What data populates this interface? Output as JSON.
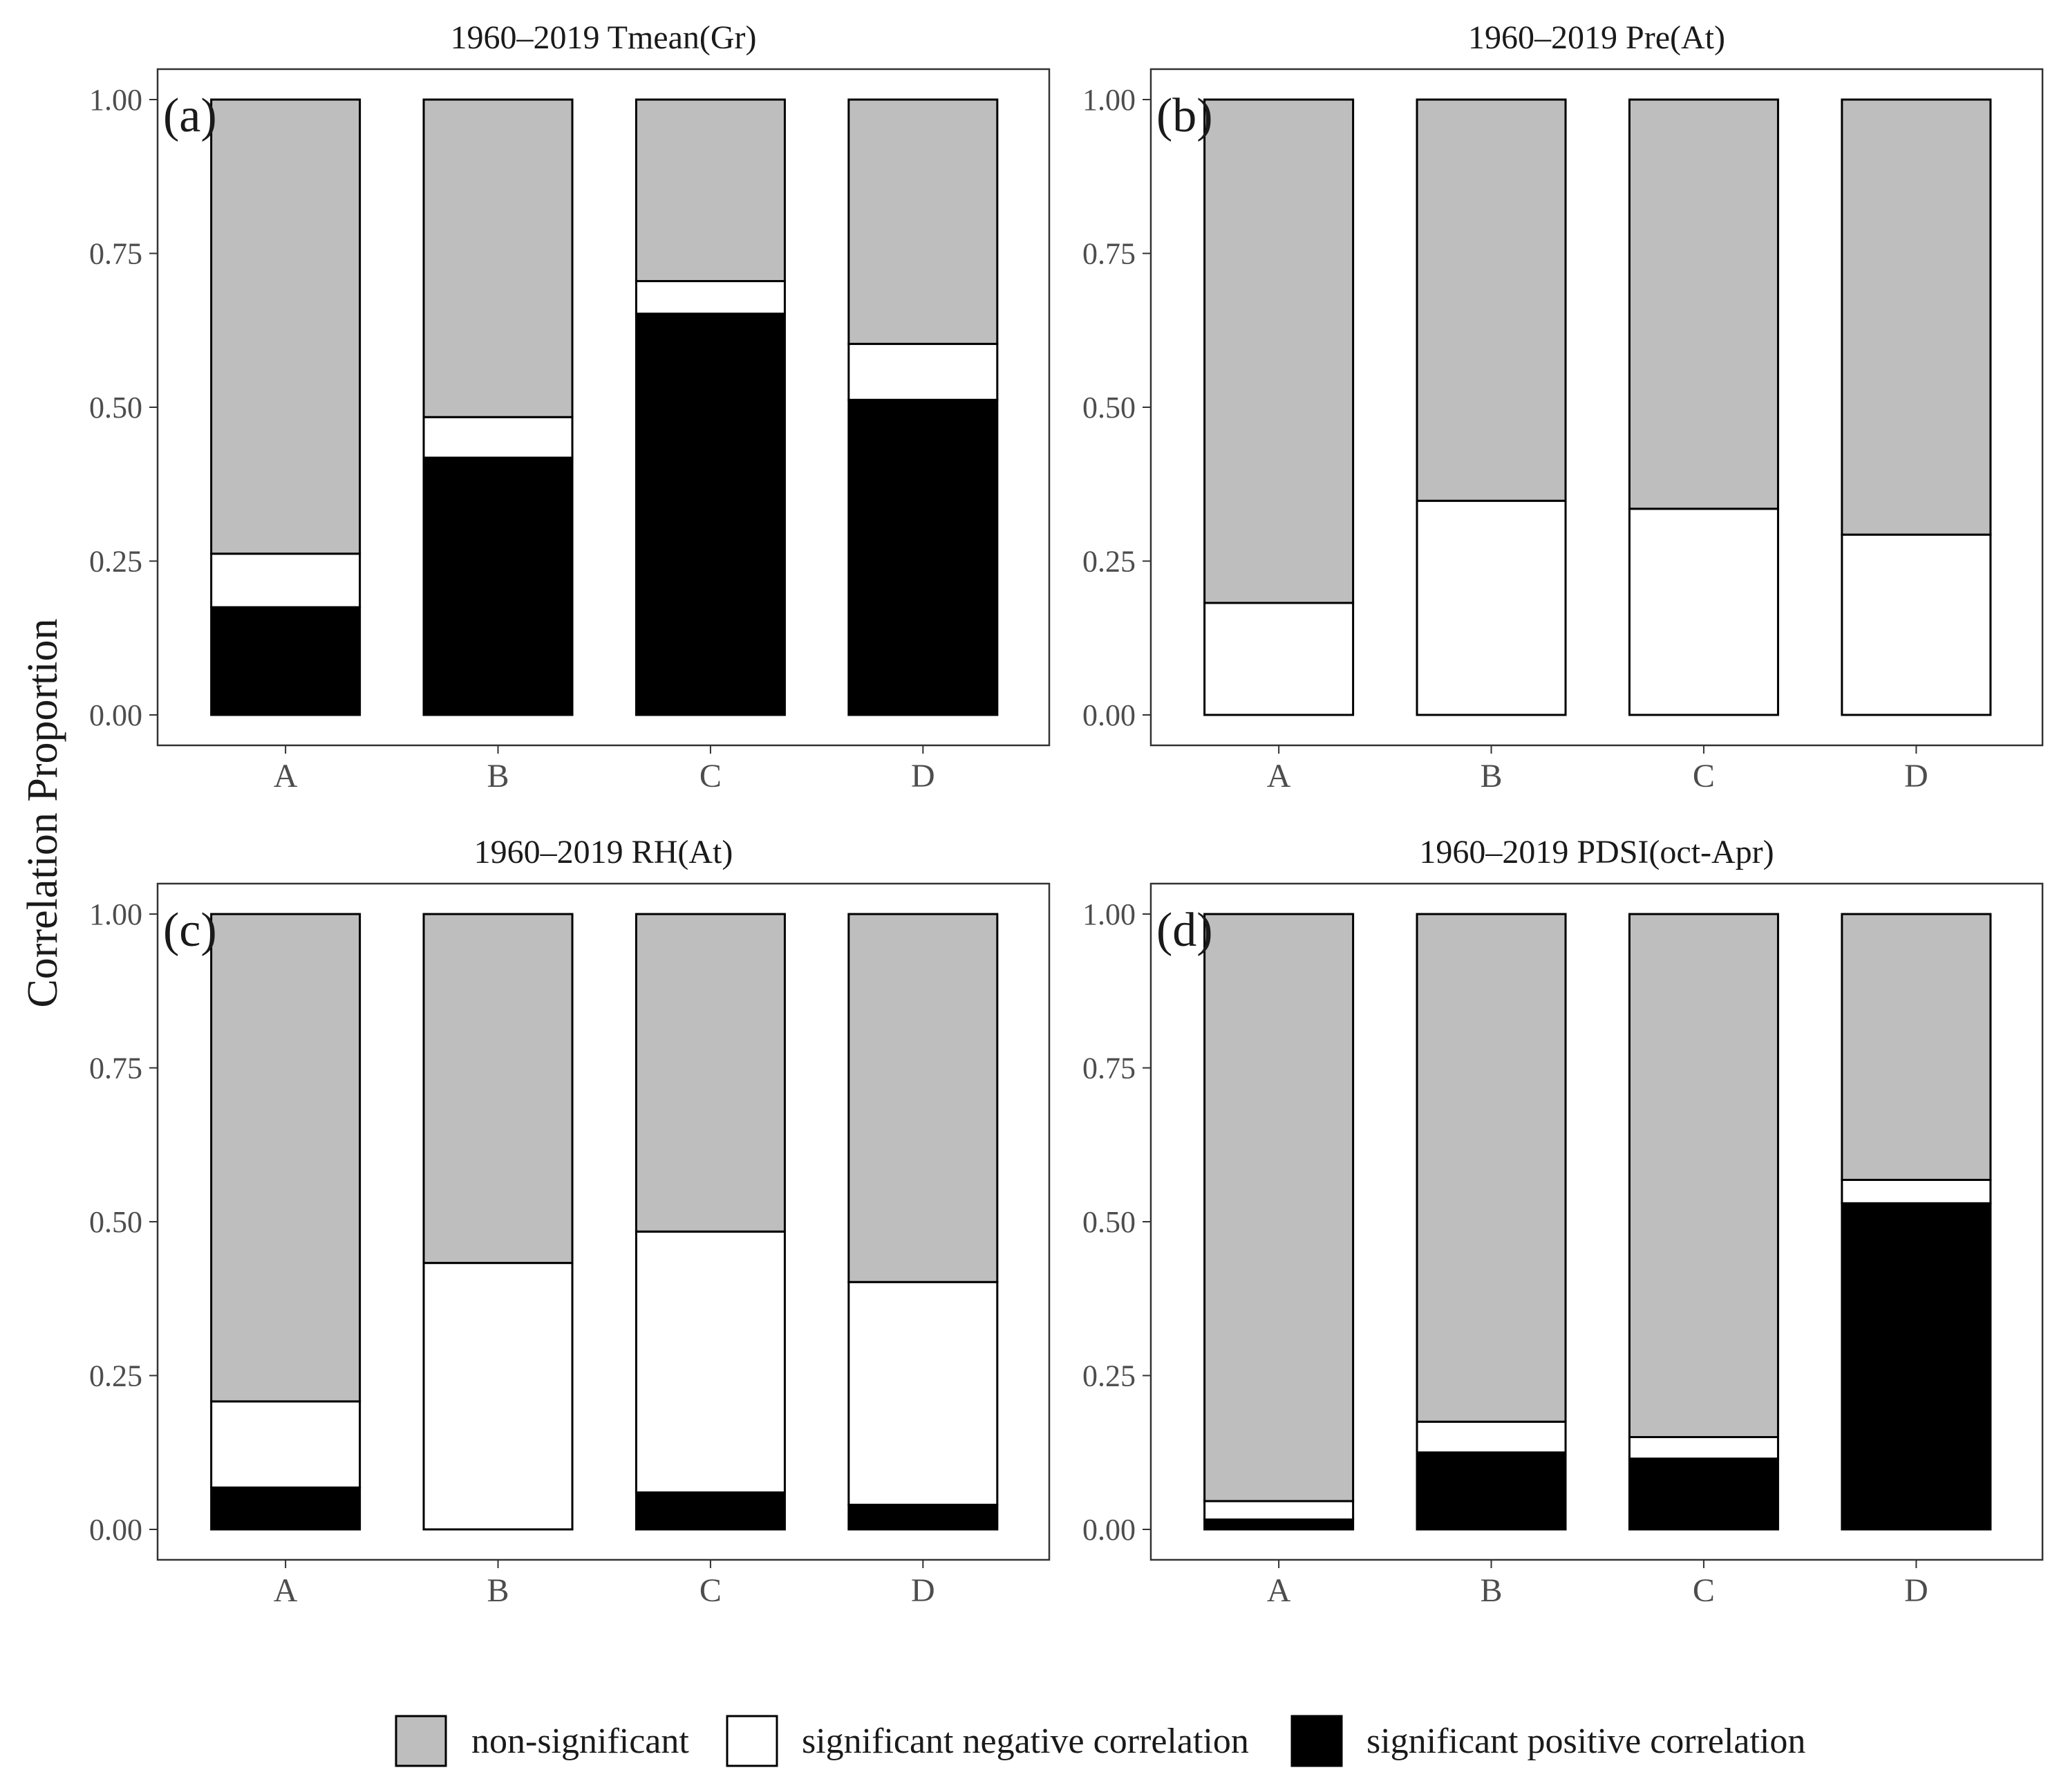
{
  "colors": {
    "non_significant": "#bebebe",
    "significant_negative": "#ffffff",
    "significant_positive": "#000000",
    "outline": "#000000",
    "axis": "#333333"
  },
  "chart_data": {
    "type": "bar",
    "stacked": true,
    "ylabel": "Correlation Proportion",
    "ylim": [
      0,
      1
    ],
    "yticks": [
      "0.00",
      "0.25",
      "0.50",
      "0.75",
      "1.00"
    ],
    "legend": {
      "placement": "bottom",
      "entries": [
        {
          "key": "non_significant",
          "label": "non-significant"
        },
        {
          "key": "significant_negative",
          "label": "significant negative correlation"
        },
        {
          "key": "significant_positive",
          "label": "significant positive correlation"
        }
      ]
    },
    "panels": [
      {
        "tag": "(a)",
        "title": "1960–2019 Tmean(Gr)",
        "categories": [
          "A",
          "B",
          "C",
          "D"
        ],
        "series": [
          {
            "name": "significant positive correlation",
            "key": "significant_positive",
            "values": [
              0.175,
              0.418,
              0.652,
              0.512
            ]
          },
          {
            "name": "significant negative correlation",
            "key": "significant_negative",
            "values": [
              0.087,
              0.066,
              0.053,
              0.091
            ]
          },
          {
            "name": "non-significant",
            "key": "non_significant",
            "values": [
              0.738,
              0.516,
              0.295,
              0.397
            ]
          }
        ]
      },
      {
        "tag": "(b)",
        "title": "1960–2019 Pre(At)",
        "categories": [
          "A",
          "B",
          "C",
          "D"
        ],
        "series": [
          {
            "name": "significant positive correlation",
            "key": "significant_positive",
            "values": [
              0,
              0,
              0,
              0
            ]
          },
          {
            "name": "significant negative correlation",
            "key": "significant_negative",
            "values": [
              0.182,
              0.348,
              0.335,
              0.293
            ]
          },
          {
            "name": "non-significant",
            "key": "non_significant",
            "values": [
              0.818,
              0.652,
              0.665,
              0.707
            ]
          }
        ]
      },
      {
        "tag": "(c)",
        "title": "1960–2019 RH(At)",
        "categories": [
          "A",
          "B",
          "C",
          "D"
        ],
        "series": [
          {
            "name": "significant positive correlation",
            "key": "significant_positive",
            "values": [
              0.068,
              0,
              0.06,
              0.04
            ]
          },
          {
            "name": "significant negative correlation",
            "key": "significant_negative",
            "values": [
              0.14,
              0.433,
              0.424,
              0.362
            ]
          },
          {
            "name": "non-significant",
            "key": "non_significant",
            "values": [
              0.792,
              0.567,
              0.516,
              0.598
            ]
          }
        ]
      },
      {
        "tag": "(d)",
        "title": "1960–2019 PDSI(oct-Apr)",
        "categories": [
          "A",
          "B",
          "C",
          "D"
        ],
        "series": [
          {
            "name": "significant positive correlation",
            "key": "significant_positive",
            "values": [
              0.016,
              0.125,
              0.115,
              0.53
            ]
          },
          {
            "name": "significant negative correlation",
            "key": "significant_negative",
            "values": [
              0.03,
              0.05,
              0.035,
              0.038
            ]
          },
          {
            "name": "non-significant",
            "key": "non_significant",
            "values": [
              0.954,
              0.825,
              0.85,
              0.432
            ]
          }
        ]
      }
    ]
  }
}
